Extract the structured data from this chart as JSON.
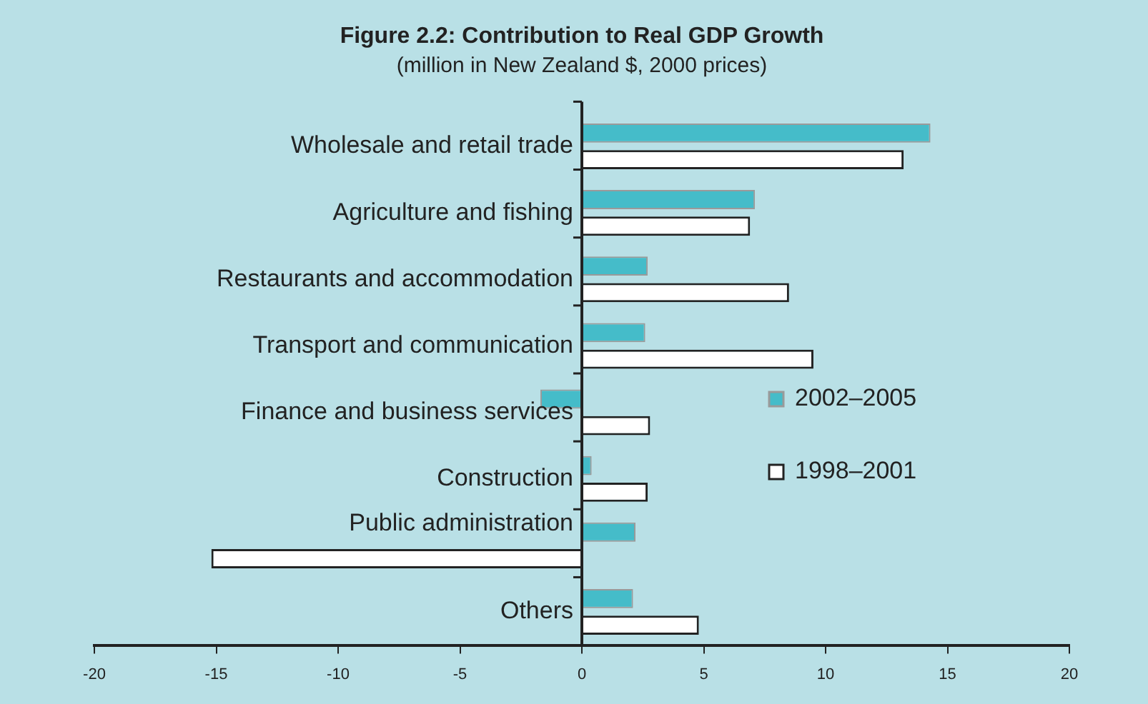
{
  "chart_data": {
    "type": "bar",
    "orientation": "horizontal",
    "title": "Figure 2.2: Contribution to Real GDP Growth",
    "subtitle": "(million in New Zealand $, 2000 prices)",
    "categories": [
      "Wholesale and retail trade",
      "Agriculture and fishing",
      "Restaurants and accommodation",
      "Transport and communication",
      "Finance and business services",
      "Construction",
      "Public administration",
      "Others"
    ],
    "series": [
      {
        "name": "2002–2005",
        "color": "#45bcc9",
        "values": [
          14.3,
          7.1,
          2.7,
          2.6,
          -1.7,
          0.4,
          2.2,
          2.1
        ]
      },
      {
        "name": "1998–2001",
        "color": "#ffffff",
        "values": [
          13.2,
          6.9,
          8.5,
          9.5,
          2.8,
          2.7,
          -15.2,
          4.8
        ]
      }
    ],
    "xlim": [
      -20,
      20
    ],
    "xticks": [
      -20,
      -15,
      -10,
      -5,
      0,
      5,
      10,
      15,
      20
    ],
    "grid": false,
    "legend": "right"
  }
}
